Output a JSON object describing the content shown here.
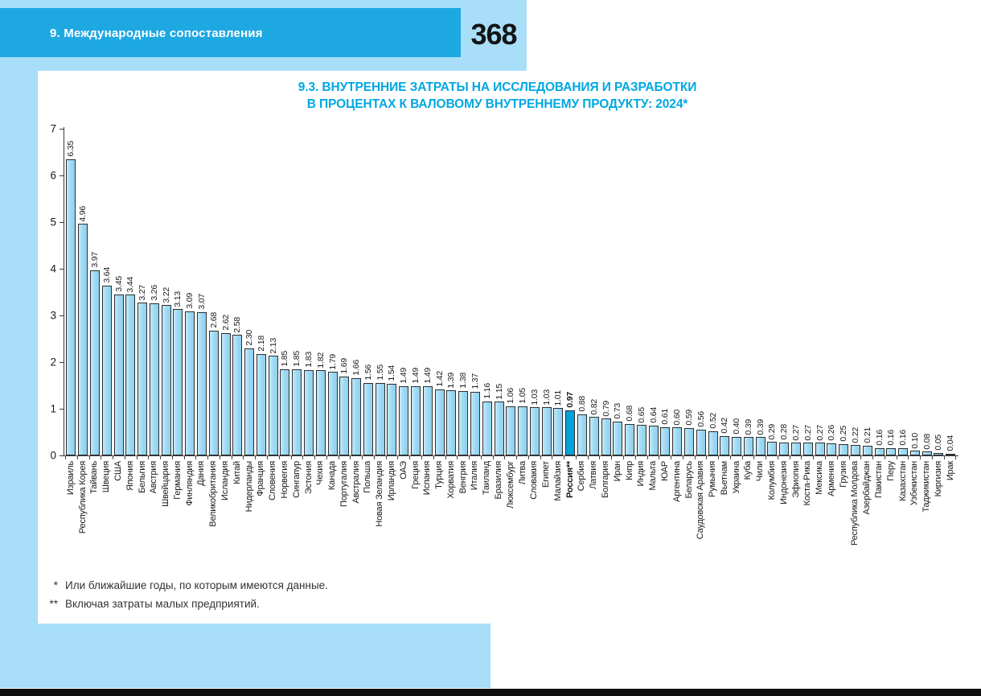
{
  "page": {
    "header": {
      "section_title": "9. Международные сопоставления",
      "page_number": "368"
    },
    "footnotes": [
      {
        "marker": "*",
        "text": "Или ближайшие годы, по которым имеются данные."
      },
      {
        "marker": "**",
        "text": "Включая затраты малых предприятий."
      }
    ]
  },
  "colors": {
    "header_band": "#1ea8e2",
    "pale_blue": "#a8def7",
    "title_accent": "#00a7e1",
    "bar_fill": "#9cd8f2",
    "bar_highlight": "#00a3dc",
    "bottom_bar": "#101010"
  },
  "chart_data": {
    "type": "bar",
    "title_lines": [
      "9.3. ВНУТРЕННИЕ ЗАТРАТЫ НА ИССЛЕДОВАНИЯ И РАЗРАБОТКИ",
      "В ПРОЦЕНТАХ К ВАЛОВОМУ ВНУТРЕННЕМУ ПРОДУКТУ: 2024*"
    ],
    "xlabel": "",
    "ylabel": "",
    "ylim": [
      0,
      7
    ],
    "yticks": [
      0,
      1,
      2,
      3,
      4,
      5,
      6,
      7
    ],
    "grid": false,
    "legend": false,
    "value_labels": "rotated-90-above-bars",
    "category_labels": "rotated-90-below-axis",
    "highlight_index": 42,
    "categories": [
      "Израиль",
      "Республика Корея",
      "Тайвань",
      "Швеция",
      "США",
      "Япония",
      "Бельгия",
      "Австрия",
      "Швейцария",
      "Германия",
      "Финляндия",
      "Дания",
      "Великобритания",
      "Исландия",
      "Китай",
      "Нидерланды",
      "Франция",
      "Словения",
      "Норвегия",
      "Сингапур",
      "Эстония",
      "Чехия",
      "Канада",
      "Португалия",
      "Австралия",
      "Польша",
      "Новая Зеландия",
      "Ирландия",
      "ОАЭ",
      "Греция",
      "Испания",
      "Турция",
      "Хорватия",
      "Венгрия",
      "Италия",
      "Таиланд",
      "Бразилия",
      "Люксембург",
      "Литва",
      "Словакия",
      "Египет",
      "Малайзия",
      "Россия**",
      "Сербия",
      "Латвия",
      "Болгария",
      "Иран",
      "Кипр",
      "Индия",
      "Мальта",
      "ЮАР",
      "Аргентина",
      "Беларусь",
      "Саудовская Аравия",
      "Румыния",
      "Вьетнам",
      "Украина",
      "Куба",
      "Чили",
      "Колумбия",
      "Индонезия",
      "Эфиопия",
      "Коста-Рика",
      "Мексика",
      "Армения",
      "Грузия",
      "Республика Молдова",
      "Азербайджан",
      "Пакистан",
      "Перу",
      "Казахстан",
      "Узбекистан",
      "Таджикистан",
      "Киргизия",
      "Ирак"
    ],
    "values": [
      6.35,
      4.96,
      3.97,
      3.64,
      3.45,
      3.44,
      3.27,
      3.26,
      3.22,
      3.13,
      3.09,
      3.07,
      2.68,
      2.62,
      2.58,
      2.3,
      2.18,
      2.13,
      1.85,
      1.85,
      1.83,
      1.82,
      1.79,
      1.69,
      1.66,
      1.56,
      1.55,
      1.54,
      1.49,
      1.49,
      1.49,
      1.42,
      1.39,
      1.38,
      1.37,
      1.16,
      1.15,
      1.06,
      1.05,
      1.03,
      1.03,
      1.01,
      0.97,
      0.88,
      0.82,
      0.79,
      0.73,
      0.68,
      0.65,
      0.64,
      0.61,
      0.6,
      0.59,
      0.56,
      0.52,
      0.42,
      0.4,
      0.39,
      0.39,
      0.29,
      0.28,
      0.27,
      0.27,
      0.27,
      0.26,
      0.25,
      0.22,
      0.21,
      0.16,
      0.16,
      0.16,
      0.1,
      0.08,
      0.05,
      0.04
    ]
  }
}
